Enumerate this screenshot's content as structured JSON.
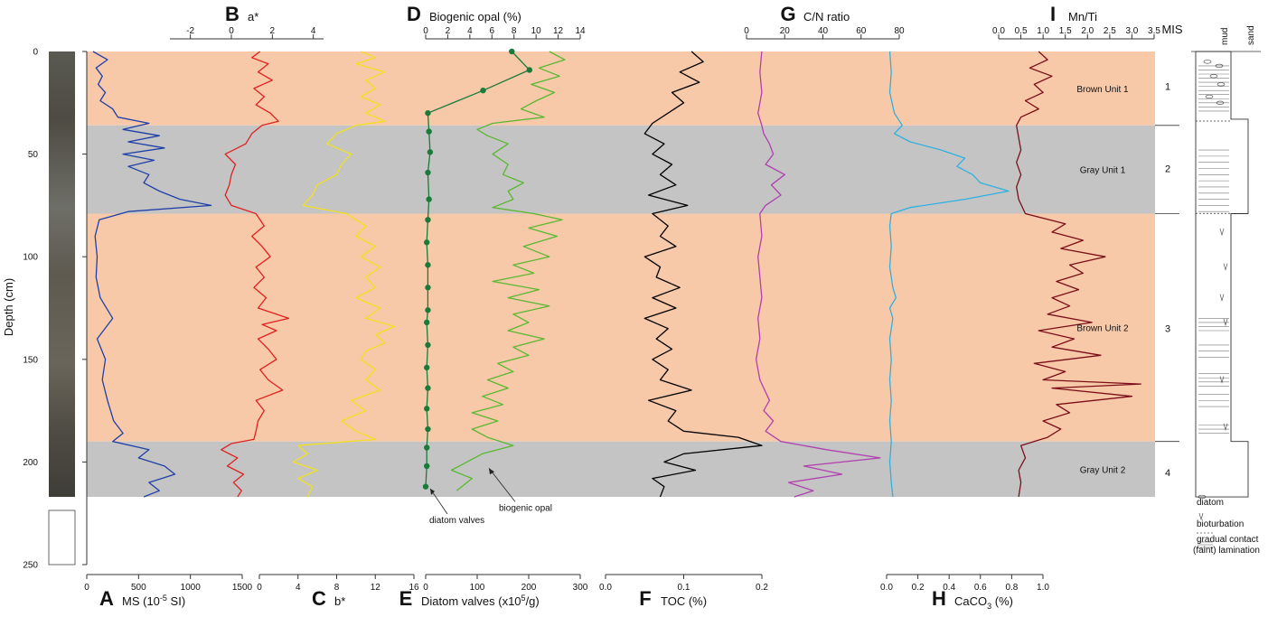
{
  "chart_data": {
    "type": "line",
    "title": "",
    "ylabel": "Depth (cm)",
    "ylim": [
      0,
      250
    ],
    "yticks": [
      0,
      50,
      100,
      150,
      200,
      250
    ],
    "units": [
      {
        "name": "Brown Unit 1",
        "top": 0,
        "bottom": 36,
        "color": "#f8c9a8"
      },
      {
        "name": "Gray Unit 1",
        "top": 36,
        "bottom": 79,
        "color": "#c4c4c4"
      },
      {
        "name": "Brown Unit 2",
        "top": 79,
        "bottom": 190,
        "color": "#f8c9a8"
      },
      {
        "name": "Gray Unit 2",
        "top": 190,
        "bottom": 217,
        "color": "#c4c4c4"
      }
    ],
    "mis": [
      {
        "label": "1",
        "depth": 17
      },
      {
        "label": "2",
        "depth": 57
      },
      {
        "label": "3",
        "depth": 135
      },
      {
        "label": "4",
        "depth": 205
      }
    ],
    "panels": [
      {
        "letter": "A",
        "label": "MS (10",
        "sup": "-5",
        "suffix": " SI)",
        "axis": "bottom",
        "min": 0,
        "max": 1500,
        "ticks": [
          0,
          500,
          1000,
          1500
        ],
        "color": "#1f3fa8",
        "depth": [
          0,
          4,
          8,
          12,
          16,
          20,
          24,
          28,
          32,
          35,
          38,
          41,
          44,
          47,
          50,
          53,
          56,
          60,
          64,
          68,
          72,
          75,
          78,
          82,
          90,
          100,
          110,
          120,
          130,
          140,
          150,
          160,
          170,
          180,
          186,
          190,
          194,
          198,
          202,
          206,
          210,
          214,
          217
        ],
        "values": [
          60,
          200,
          90,
          150,
          110,
          180,
          130,
          250,
          300,
          600,
          350,
          700,
          400,
          750,
          350,
          650,
          400,
          600,
          550,
          700,
          900,
          1200,
          400,
          120,
          80,
          100,
          90,
          130,
          250,
          100,
          180,
          150,
          200,
          260,
          350,
          250,
          600,
          500,
          750,
          850,
          600,
          700,
          550
        ]
      },
      {
        "letter": "B",
        "label": "a*",
        "axis": "top",
        "min": -3,
        "max": 4.5,
        "ticks": [
          -2,
          0,
          2,
          4
        ],
        "color": "#e02020",
        "depth": [
          0,
          3,
          6,
          10,
          14,
          18,
          22,
          26,
          30,
          34,
          36,
          40,
          45,
          50,
          55,
          60,
          65,
          70,
          75,
          79,
          85,
          90,
          95,
          100,
          105,
          110,
          115,
          120,
          125,
          130,
          133,
          136,
          140,
          145,
          150,
          155,
          160,
          165,
          170,
          175,
          180,
          185,
          189,
          191,
          194,
          198,
          202,
          206,
          210,
          214,
          217
        ],
        "values": [
          1.4,
          1.0,
          1.8,
          1.3,
          2.0,
          1.1,
          1.6,
          1.2,
          1.9,
          2.3,
          1.5,
          1.0,
          0.7,
          -0.3,
          0.2,
          0.0,
          -0.1,
          -0.3,
          0.0,
          1.2,
          1.6,
          1.0,
          1.5,
          1.9,
          1.2,
          1.6,
          1.1,
          1.7,
          1.3,
          2.8,
          1.5,
          2.2,
          1.3,
          1.8,
          2.2,
          1.4,
          1.8,
          2.5,
          1.2,
          1.6,
          1.3,
          1.2,
          1.1,
          0.0,
          -0.5,
          0.3,
          -0.2,
          0.6,
          0.1,
          0.5,
          0.3
        ]
      },
      {
        "letter": "C",
        "label": "b*",
        "axis": "bottom",
        "min": 0,
        "max": 16,
        "ticks": [
          0,
          4,
          8,
          12,
          16
        ],
        "color": "#f0e020",
        "depth": [
          0,
          3,
          6,
          10,
          14,
          18,
          22,
          26,
          30,
          34,
          36,
          40,
          45,
          50,
          55,
          60,
          65,
          70,
          75,
          79,
          85,
          90,
          95,
          100,
          105,
          110,
          115,
          120,
          125,
          130,
          134,
          138,
          142,
          146,
          150,
          155,
          160,
          165,
          170,
          175,
          180,
          185,
          189,
          192,
          196,
          200,
          204,
          208,
          212,
          217
        ],
        "values": [
          10.5,
          12,
          10,
          13,
          11,
          12,
          10.5,
          12.5,
          11,
          13,
          10,
          8,
          7,
          9.5,
          8.5,
          8,
          6,
          5.5,
          4.5,
          9,
          11,
          10,
          12,
          10.5,
          12.5,
          11,
          12,
          10,
          12.5,
          11,
          14,
          12,
          13,
          11,
          10.5,
          12,
          11,
          12.5,
          9.5,
          11,
          8.5,
          10,
          12,
          4,
          5,
          3.5,
          6,
          4,
          5.5,
          5
        ]
      },
      {
        "letter": "D",
        "label": "Biogenic opal (%)",
        "axis": "top",
        "min": 0,
        "max": 14,
        "ticks": [
          0,
          2,
          4,
          6,
          8,
          10,
          12,
          14
        ],
        "color": "#1a7a3a",
        "markers": true,
        "depth": [
          0,
          9,
          19,
          30,
          39,
          49,
          59,
          72,
          82,
          93,
          104,
          115,
          126,
          132,
          143,
          154,
          164,
          174,
          184,
          193,
          202,
          212
        ],
        "values": [
          7.8,
          9.4,
          5.2,
          0.2,
          0.3,
          0.4,
          0.2,
          0.3,
          0.2,
          0.1,
          0.2,
          0.2,
          0.2,
          0.1,
          0.2,
          0.1,
          0.2,
          0.1,
          0.2,
          0.1,
          0.1,
          0.0
        ]
      },
      {
        "letter": "E",
        "label": "Diatom valves (x10",
        "sup": "5",
        "suffix": "/g)",
        "axis": "bottom",
        "min": 0,
        "max": 300,
        "ticks": [
          0,
          100,
          200,
          300
        ],
        "color": "#5ab832",
        "depth": [
          0,
          4,
          8,
          12,
          16,
          20,
          24,
          28,
          32,
          35,
          38,
          41,
          45,
          50,
          55,
          60,
          64,
          68,
          72,
          76,
          79,
          82,
          86,
          90,
          95,
          100,
          104,
          108,
          112,
          116,
          120,
          124,
          128,
          132,
          136,
          140,
          144,
          148,
          152,
          156,
          160,
          164,
          168,
          172,
          176,
          180,
          184,
          188,
          192,
          196,
          200,
          204,
          208,
          212,
          214
        ],
        "values": [
          240,
          270,
          220,
          260,
          205,
          250,
          215,
          185,
          230,
          130,
          100,
          120,
          160,
          130,
          160,
          150,
          190,
          160,
          170,
          130,
          210,
          265,
          200,
          255,
          190,
          240,
          170,
          210,
          130,
          220,
          160,
          240,
          170,
          200,
          160,
          230,
          170,
          200,
          140,
          170,
          120,
          160,
          110,
          150,
          90,
          140,
          90,
          120,
          170,
          110,
          80,
          50,
          90,
          70,
          60
        ]
      },
      {
        "letter": "F",
        "label": "TOC (%)",
        "axis": "bottom",
        "min": 0,
        "max": 0.2,
        "ticks": [
          0.0,
          0.1,
          0.2
        ],
        "color": "#000000",
        "depth": [
          0,
          5,
          10,
          15,
          20,
          25,
          30,
          35,
          40,
          45,
          50,
          55,
          60,
          65,
          70,
          75,
          79,
          85,
          90,
          95,
          100,
          105,
          110,
          115,
          120,
          125,
          130,
          135,
          140,
          145,
          150,
          155,
          160,
          165,
          170,
          175,
          180,
          185,
          188,
          192,
          196,
          200,
          204,
          208,
          212,
          217
        ],
        "values": [
          0.11,
          0.125,
          0.095,
          0.12,
          0.085,
          0.1,
          0.08,
          0.06,
          0.05,
          0.075,
          0.06,
          0.085,
          0.07,
          0.09,
          0.055,
          0.105,
          0.06,
          0.08,
          0.07,
          0.09,
          0.05,
          0.07,
          0.065,
          0.095,
          0.06,
          0.09,
          0.05,
          0.08,
          0.065,
          0.085,
          0.06,
          0.08,
          0.07,
          0.11,
          0.055,
          0.09,
          0.08,
          0.1,
          0.17,
          0.2,
          0.1,
          0.075,
          0.115,
          0.06,
          0.075,
          0.07
        ]
      },
      {
        "letter": "G",
        "label": "C/N ratio",
        "axis": "top",
        "min": 0,
        "max": 80,
        "ticks": [
          0,
          20,
          40,
          60,
          80
        ],
        "color": "#b040b0",
        "depth": [
          0,
          10,
          20,
          30,
          36,
          40,
          45,
          50,
          55,
          60,
          65,
          70,
          75,
          79,
          90,
          100,
          110,
          120,
          130,
          140,
          150,
          160,
          170,
          175,
          180,
          185,
          190,
          194,
          198,
          202,
          206,
          210,
          214,
          217
        ],
        "values": [
          8,
          7,
          8,
          6,
          8,
          9,
          12,
          14,
          10,
          20,
          13,
          18,
          10,
          7,
          8,
          6,
          7,
          8,
          6,
          7,
          5,
          7,
          12,
          9,
          14,
          10,
          18,
          42,
          70,
          30,
          50,
          22,
          35,
          25
        ]
      },
      {
        "letter": "H",
        "label": "CaCO",
        "sub": "3",
        "suffix": " (%)",
        "axis": "bottom",
        "min": 0,
        "max": 1.0,
        "ticks": [
          0.0,
          0.2,
          0.4,
          0.6,
          0.8,
          1.0
        ],
        "color": "#30b0e0",
        "depth": [
          0,
          10,
          20,
          30,
          36,
          40,
          44,
          48,
          52,
          56,
          60,
          64,
          68,
          72,
          76,
          79,
          85,
          95,
          105,
          115,
          120,
          125,
          130,
          140,
          150,
          160,
          170,
          180,
          190,
          200,
          210,
          217
        ],
        "values": [
          0.02,
          0.03,
          0.02,
          0.05,
          0.1,
          0.05,
          0.15,
          0.35,
          0.5,
          0.45,
          0.55,
          0.6,
          0.78,
          0.5,
          0.15,
          0.03,
          0.02,
          0.03,
          0.02,
          0.04,
          0.06,
          0.02,
          0.04,
          0.02,
          0.03,
          0.02,
          0.03,
          0.02,
          0.03,
          0.02,
          0.03,
          0.04
        ]
      },
      {
        "letter": "I",
        "label": "Mn/Ti",
        "axis": "top",
        "min": 0,
        "max": 3.5,
        "ticks": [
          0.0,
          0.5,
          1.0,
          1.5,
          2.0,
          2.5,
          3.0,
          3.5
        ],
        "color": "#7a0f1a",
        "depth": [
          0,
          4,
          8,
          12,
          16,
          20,
          24,
          28,
          32,
          36,
          42,
          48,
          54,
          60,
          66,
          72,
          79,
          84,
          88,
          92,
          96,
          100,
          104,
          108,
          112,
          116,
          120,
          124,
          128,
          132,
          136,
          140,
          144,
          148,
          152,
          156,
          160,
          162,
          164,
          168,
          172,
          176,
          180,
          184,
          188,
          192,
          198,
          204,
          210,
          217
        ],
        "values": [
          0.9,
          1.1,
          0.7,
          1.2,
          0.8,
          1.0,
          0.6,
          0.9,
          0.5,
          0.4,
          0.45,
          0.5,
          0.4,
          0.5,
          0.4,
          0.45,
          0.6,
          1.5,
          1.2,
          1.9,
          1.4,
          2.4,
          1.6,
          1.9,
          1.3,
          1.8,
          1.2,
          1.6,
          1.1,
          2.1,
          0.9,
          1.7,
          1.2,
          2.3,
          0.8,
          1.5,
          1.0,
          3.2,
          1.2,
          3.0,
          1.3,
          1.6,
          1.0,
          1.4,
          1.1,
          0.5,
          0.6,
          0.45,
          0.5,
          0.45
        ]
      }
    ],
    "annotations": [
      {
        "text": "diatom valves",
        "depth": 228
      },
      {
        "text": "biogenic opal",
        "depth": 222
      }
    ]
  },
  "lithology": {
    "headers": [
      "mud",
      "sand"
    ],
    "legend": [
      {
        "icon": "diatom-icon",
        "text": "diatom"
      },
      {
        "icon": "bioturbation-icon",
        "text": "bioturbation"
      },
      {
        "icon": "gradual-contact-icon",
        "text": "gradual contact"
      },
      {
        "icon": "lamination-icon",
        "text": "(faint) lamination"
      }
    ]
  },
  "mis_header": "MIS"
}
